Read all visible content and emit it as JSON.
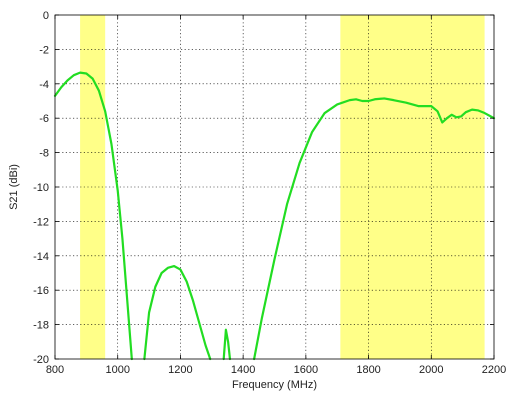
{
  "chart_data": {
    "type": "line",
    "title": "",
    "xlabel": "Frequency (MHz)",
    "ylabel": "S21 (dBi)",
    "xlim": [
      800,
      2200
    ],
    "ylim": [
      -20,
      0
    ],
    "xticks": [
      800,
      1000,
      1200,
      1400,
      1600,
      1800,
      2000,
      2200
    ],
    "yticks": [
      0,
      -2,
      -4,
      -6,
      -8,
      -10,
      -12,
      -14,
      -16,
      -18,
      -20
    ],
    "grid": true,
    "legend": "none",
    "highlight_bands": [
      {
        "x0": 880,
        "x1": 960,
        "color": "#ffff88"
      },
      {
        "x0": 1710,
        "x1": 2170,
        "color": "#ffff88"
      }
    ],
    "series": [
      {
        "color": "#22dd22",
        "segments": [
          [
            [
              800,
              -4.7
            ],
            [
              820,
              -4.2
            ],
            [
              840,
              -3.8
            ],
            [
              860,
              -3.5
            ],
            [
              880,
              -3.35
            ],
            [
              900,
              -3.4
            ],
            [
              920,
              -3.7
            ],
            [
              940,
              -4.4
            ],
            [
              960,
              -5.6
            ],
            [
              980,
              -7.5
            ],
            [
              1000,
              -10.2
            ],
            [
              1015,
              -13.0
            ],
            [
              1030,
              -16.5
            ],
            [
              1045,
              -20.0
            ]
          ],
          [
            [
              1085,
              -20.0
            ],
            [
              1100,
              -17.3
            ],
            [
              1120,
              -15.8
            ],
            [
              1140,
              -15.0
            ],
            [
              1160,
              -14.7
            ],
            [
              1180,
              -14.6
            ],
            [
              1200,
              -14.8
            ],
            [
              1220,
              -15.5
            ],
            [
              1240,
              -16.6
            ],
            [
              1260,
              -17.9
            ],
            [
              1280,
              -19.2
            ],
            [
              1295,
              -20.0
            ]
          ],
          [
            [
              1338,
              -20.0
            ],
            [
              1345,
              -18.3
            ],
            [
              1352,
              -19.0
            ],
            [
              1358,
              -20.0
            ]
          ],
          [
            [
              1435,
              -20.0
            ],
            [
              1460,
              -17.6
            ],
            [
              1500,
              -14.2
            ],
            [
              1540,
              -11.0
            ],
            [
              1580,
              -8.6
            ],
            [
              1620,
              -6.8
            ],
            [
              1660,
              -5.7
            ],
            [
              1700,
              -5.2
            ],
            [
              1740,
              -4.95
            ],
            [
              1760,
              -4.9
            ],
            [
              1780,
              -5.0
            ],
            [
              1800,
              -5.0
            ],
            [
              1820,
              -4.9
            ],
            [
              1850,
              -4.85
            ],
            [
              1880,
              -4.95
            ],
            [
              1920,
              -5.1
            ],
            [
              1960,
              -5.3
            ],
            [
              2000,
              -5.3
            ],
            [
              2020,
              -5.6
            ],
            [
              2035,
              -6.25
            ],
            [
              2050,
              -6.0
            ],
            [
              2065,
              -5.8
            ],
            [
              2080,
              -5.95
            ],
            [
              2095,
              -5.9
            ],
            [
              2110,
              -5.65
            ],
            [
              2130,
              -5.5
            ],
            [
              2150,
              -5.55
            ],
            [
              2170,
              -5.7
            ],
            [
              2185,
              -5.85
            ],
            [
              2200,
              -6.0
            ]
          ]
        ]
      }
    ]
  }
}
